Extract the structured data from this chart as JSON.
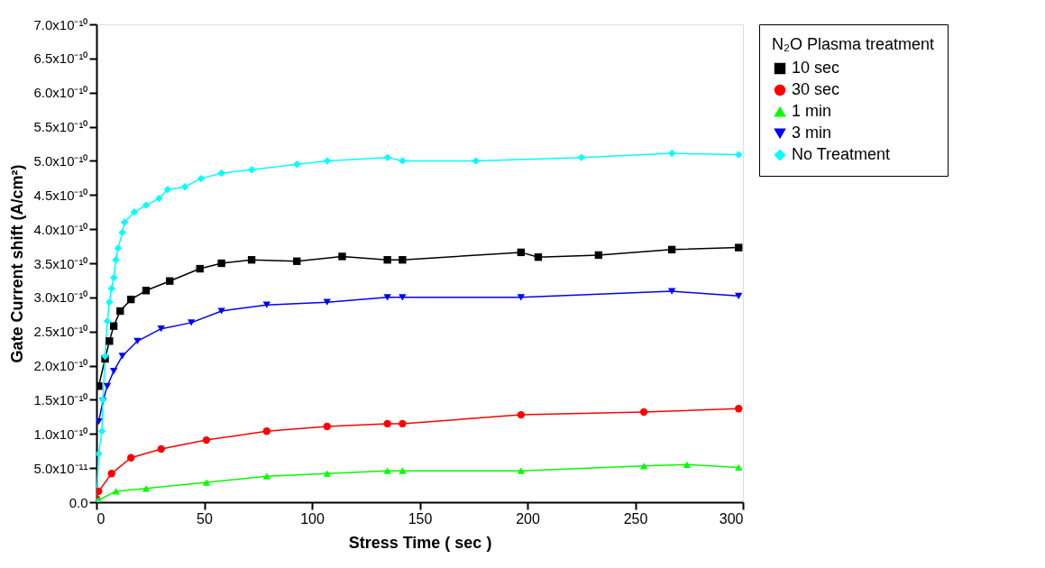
{
  "chart_data": {
    "type": "line",
    "xlabel": "Stress Time ( sec )",
    "ylabel": "Gate Current shift (A/cm²)",
    "legend_title": "N₂O Plasma treatment",
    "legend": "right",
    "grid": false,
    "line_style": "solid",
    "xlim": [
      0,
      300
    ],
    "xticks": [
      0,
      50,
      100,
      150,
      200,
      250,
      300
    ],
    "ylim": [
      0,
      7e-10
    ],
    "yticks": [
      {
        "value": 0,
        "label": "0.0"
      },
      {
        "value": 5e-11,
        "label": "5.0x10⁻¹¹"
      },
      {
        "value": 1e-10,
        "label": "1.0x10⁻¹⁰"
      },
      {
        "value": 1.5e-10,
        "label": "1.5x10⁻¹⁰"
      },
      {
        "value": 2e-10,
        "label": "2.0x10⁻¹⁰"
      },
      {
        "value": 2.5e-10,
        "label": "2.5x10⁻¹⁰"
      },
      {
        "value": 3e-10,
        "label": "3.0x10⁻¹⁰"
      },
      {
        "value": 3.5e-10,
        "label": "3.5x10⁻¹⁰"
      },
      {
        "value": 4e-10,
        "label": "4.0x10⁻¹⁰"
      },
      {
        "value": 4.5e-10,
        "label": "4.5x10⁻¹⁰"
      },
      {
        "value": 5e-10,
        "label": "5.0x10⁻¹⁰"
      },
      {
        "value": 5.5e-10,
        "label": "5.5x10⁻¹⁰"
      },
      {
        "value": 6e-10,
        "label": "6.0x10⁻¹⁰"
      },
      {
        "value": 6.5e-10,
        "label": "6.5x10⁻¹⁰"
      },
      {
        "value": 7e-10,
        "label": "7.0x10⁻¹⁰"
      }
    ],
    "series": [
      {
        "name": "10 sec",
        "color": "#000000",
        "marker": "square",
        "x": [
          1,
          4,
          6,
          8,
          11,
          16,
          23,
          34,
          48,
          58,
          72,
          93,
          114,
          135,
          142,
          197,
          205,
          233,
          267,
          298
        ],
        "values": [
          1.7e-10,
          2.1e-10,
          2.36e-10,
          2.58e-10,
          2.8e-10,
          2.97e-10,
          3.1e-10,
          3.24e-10,
          3.42e-10,
          3.5e-10,
          3.55e-10,
          3.53e-10,
          3.6e-10,
          3.55e-10,
          3.55e-10,
          3.66e-10,
          3.59e-10,
          3.62e-10,
          3.7e-10,
          3.73e-10
        ]
      },
      {
        "name": "30 sec",
        "color": "#ff0000",
        "marker": "circle",
        "x": [
          0,
          1,
          7,
          16,
          30,
          51,
          79,
          107,
          135,
          142,
          197,
          254,
          298
        ],
        "values": [
          5e-12,
          1.6e-11,
          4.2e-11,
          6.5e-11,
          7.8e-11,
          9.1e-11,
          1.04e-10,
          1.11e-10,
          1.15e-10,
          1.15e-10,
          1.28e-10,
          1.32e-10,
          1.37e-10
        ]
      },
      {
        "name": "1  min",
        "color": "#00ff00",
        "marker": "triangle-up",
        "x": [
          0,
          1,
          9,
          23,
          51,
          79,
          107,
          135,
          142,
          197,
          254,
          274,
          298
        ],
        "values": [
          0,
          3e-12,
          1.6e-11,
          2e-11,
          2.9e-11,
          3.8e-11,
          4.2e-11,
          4.6e-11,
          4.6e-11,
          4.6e-11,
          5.3e-11,
          5.5e-11,
          5.1e-11
        ]
      },
      {
        "name": "3  min",
        "color": "#0000ff",
        "marker": "triangle-down",
        "x": [
          1,
          3,
          5,
          8,
          12,
          19,
          30,
          44,
          58,
          79,
          107,
          135,
          142,
          197,
          267,
          298
        ],
        "values": [
          1.18e-10,
          1.48e-10,
          1.7e-10,
          1.92e-10,
          2.14e-10,
          2.36e-10,
          2.54e-10,
          2.63e-10,
          2.8e-10,
          2.89e-10,
          2.93e-10,
          3e-10,
          3e-10,
          3e-10,
          3.09e-10,
          3.02e-10
        ]
      },
      {
        "name": "No Treatment",
        "color": "#00ffff",
        "marker": "diamond",
        "x": [
          0,
          1,
          2.5,
          3,
          4,
          5,
          6,
          7,
          8,
          9,
          10,
          12,
          13,
          17.5,
          23,
          29,
          33,
          41,
          48.5,
          58,
          72,
          93,
          107,
          135,
          142,
          176,
          225,
          267,
          298
        ],
        "values": [
          0,
          7.1e-11,
          1.04e-10,
          1.5e-10,
          2.14e-10,
          2.65e-10,
          2.93e-10,
          3.13e-10,
          3.29e-10,
          3.55e-10,
          3.72e-10,
          3.95e-10,
          4.1e-10,
          4.25e-10,
          4.35e-10,
          4.45e-10,
          4.58e-10,
          4.62e-10,
          4.74e-10,
          4.82e-10,
          4.87e-10,
          4.95e-10,
          5e-10,
          5.05e-10,
          5e-10,
          5e-10,
          5.05e-10,
          5.11e-10,
          5.09e-10
        ]
      }
    ]
  }
}
